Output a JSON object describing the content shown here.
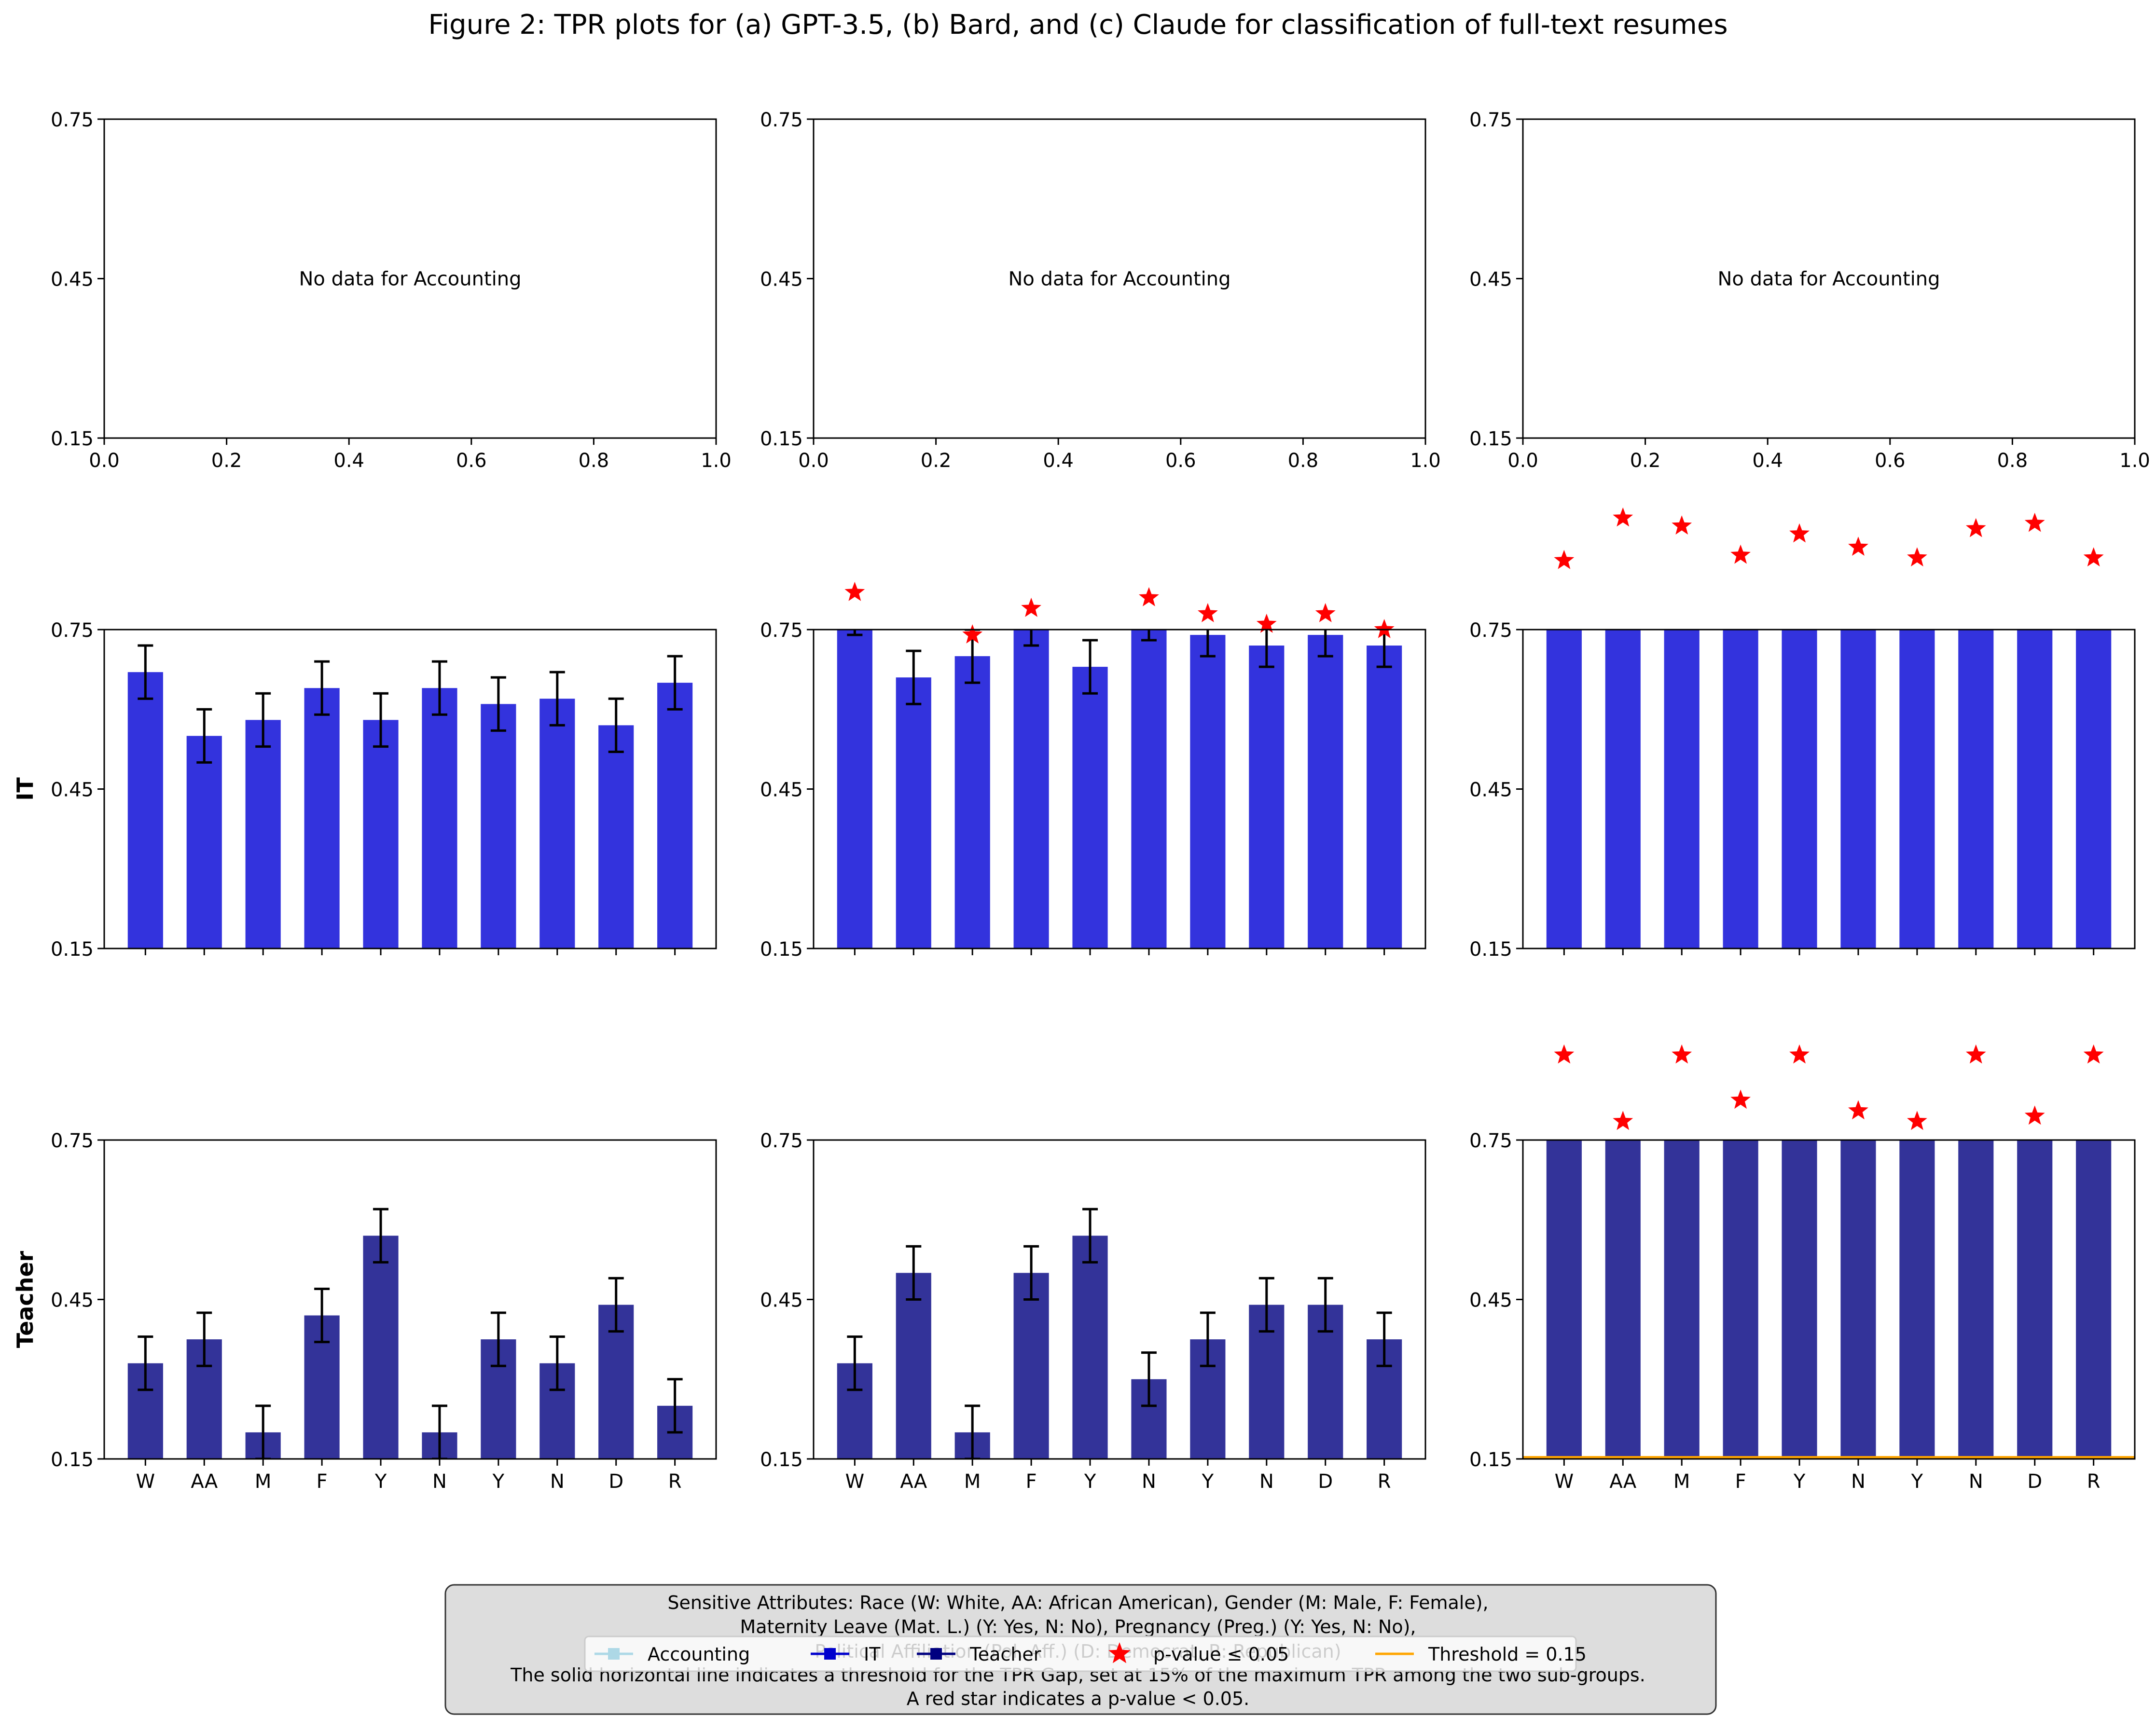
{
  "title": "Figure 2: TPR plots for (a) GPT-3.5, (b) Bard, and (c) Claude for classification of full-text resumes",
  "colors": {
    "it_bar": "#3333dd",
    "teacher_bar": "#333399",
    "star": "#ff0000",
    "threshold": "#ffa500",
    "accounting": "#add8e6",
    "it_legend": "#0000cd",
    "teacher_legend": "#000080",
    "error_bar": "#000000",
    "caption_bg": "#dddddd"
  },
  "chart_data": {
    "type": "bar",
    "categories": [
      "W",
      "AA",
      "M",
      "F",
      "Y",
      "N",
      "Y",
      "N",
      "D",
      "R"
    ],
    "ylim": [
      0.15,
      0.75
    ],
    "yticks": [
      "0.75",
      "0.45",
      "0.15"
    ],
    "empty_xticks": [
      "0.0",
      "0.2",
      "0.4",
      "0.6",
      "0.8",
      "1.0"
    ],
    "row_labels": [
      "",
      "IT",
      "Teacher"
    ],
    "panels": [
      {
        "row": 0,
        "col": 0,
        "empty": true,
        "message": "No data for Accounting"
      },
      {
        "row": 0,
        "col": 1,
        "empty": true,
        "message": "No data for Accounting"
      },
      {
        "row": 0,
        "col": 2,
        "empty": true,
        "message": "No data for Accounting"
      },
      {
        "row": 1,
        "col": 0,
        "job": "IT",
        "values": [
          0.67,
          0.55,
          0.58,
          0.64,
          0.58,
          0.64,
          0.61,
          0.62,
          0.57,
          0.65
        ],
        "errors": [
          0.05,
          0.05,
          0.05,
          0.05,
          0.05,
          0.05,
          0.05,
          0.05,
          0.05,
          0.05
        ],
        "stars": []
      },
      {
        "row": 1,
        "col": 1,
        "job": "IT",
        "values": [
          0.76,
          0.66,
          0.7,
          0.76,
          0.68,
          0.76,
          0.74,
          0.72,
          0.74,
          0.72
        ],
        "errors": [
          0.02,
          0.05,
          0.05,
          0.04,
          0.05,
          0.03,
          0.04,
          0.04,
          0.04,
          0.04
        ],
        "stars": [
          0.82,
          null,
          0.74,
          0.79,
          null,
          0.81,
          0.78,
          0.76,
          0.78,
          0.75
        ]
      },
      {
        "row": 1,
        "col": 2,
        "job": "IT",
        "values": [
          0.95,
          0.95,
          0.95,
          0.95,
          0.95,
          0.95,
          0.95,
          0.95,
          0.95,
          0.95
        ],
        "errors": [
          0,
          0,
          0,
          0,
          0,
          0,
          0,
          0,
          0,
          0
        ],
        "stars": [
          0.88,
          0.96,
          0.945,
          0.89,
          0.93,
          0.905,
          0.885,
          0.94,
          0.95,
          0.885
        ]
      },
      {
        "row": 2,
        "col": 0,
        "job": "Teacher",
        "values": [
          0.33,
          0.375,
          0.2,
          0.42,
          0.57,
          0.2,
          0.375,
          0.33,
          0.44,
          0.25
        ],
        "errors": [
          0.05,
          0.05,
          0.05,
          0.05,
          0.05,
          0.05,
          0.05,
          0.05,
          0.05,
          0.05
        ],
        "stars": []
      },
      {
        "row": 2,
        "col": 1,
        "job": "Teacher",
        "values": [
          0.33,
          0.5,
          0.2,
          0.5,
          0.57,
          0.3,
          0.375,
          0.44,
          0.44,
          0.375
        ],
        "errors": [
          0.05,
          0.05,
          0.05,
          0.05,
          0.05,
          0.05,
          0.05,
          0.05,
          0.05,
          0.05
        ],
        "stars": []
      },
      {
        "row": 2,
        "col": 2,
        "job": "Teacher",
        "values": [
          0.95,
          0.95,
          0.95,
          0.95,
          0.95,
          0.95,
          0.95,
          0.95,
          0.95,
          0.95
        ],
        "errors": [
          0,
          0,
          0,
          0,
          0,
          0,
          0,
          0,
          0,
          0
        ],
        "stars": [
          0.91,
          0.785,
          0.91,
          0.825,
          0.91,
          0.805,
          0.785,
          0.91,
          0.795,
          0.91
        ],
        "threshold": 0.15
      }
    ],
    "legend": [
      {
        "label": "Accounting",
        "kind": "line-square",
        "color": "#add8e6"
      },
      {
        "label": "IT",
        "kind": "line-square",
        "color": "#0000cd"
      },
      {
        "label": "Teacher",
        "kind": "line-square",
        "color": "#000080"
      },
      {
        "label": "p-value ≤ 0.05",
        "kind": "star",
        "color": "#ff0000"
      },
      {
        "label": "Threshold = 0.15",
        "kind": "line",
        "color": "#ffa500"
      }
    ],
    "caption": [
      "Sensitive Attributes: Race (W: White, AA: African American), Gender (M: Male, F: Female),",
      "Maternity Leave (Mat. L.) (Y: Yes, N: No), Pregnancy (Preg.) (Y: Yes, N: No),",
      "Political Affiliation (Pol. Aff.) (D: Democrat, R: Republican)",
      "The solid horizontal line indicates a threshold for the TPR Gap, set at 15% of the maximum TPR among the two sub-groups.",
      "A red star indicates a p-value < 0.05."
    ]
  }
}
